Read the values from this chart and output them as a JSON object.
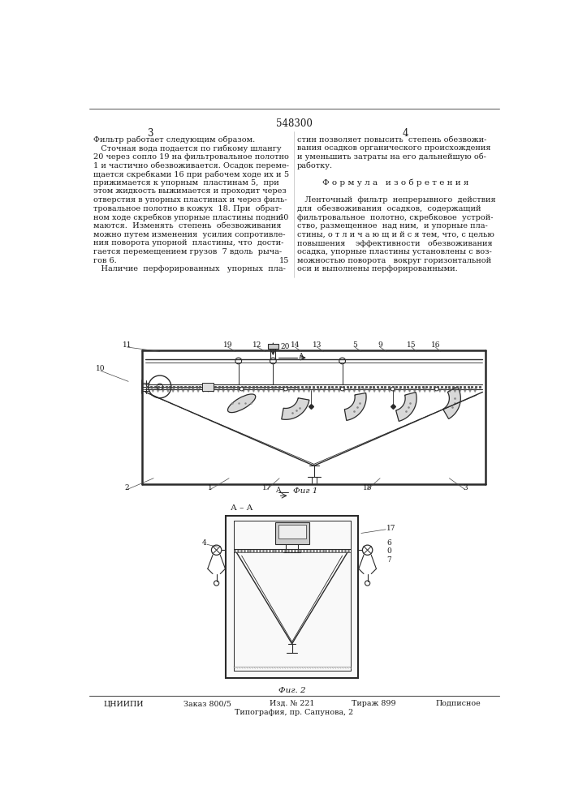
{
  "page_width": 7.07,
  "page_height": 10.0,
  "bg_color": "#ffffff",
  "patent_number": "548300",
  "page_numbers": [
    "3",
    "4"
  ],
  "left_text_lines": [
    "Фильтр работает следующим образом.",
    "   Сточная вода подается по гибкому шлангу",
    "20 через сопло 19 на фильтровальное полотно",
    "1 и частично обезвоживается. Осадок переме-",
    "щается скребками 16 при рабочем ходе их и",
    "прижимается к упорным  пластинам 5,  при",
    "этом жидкость выжимается и проходит через",
    "отверстия в упорных пластинах и через филь-",
    "тровальное полотно в кожух  18. При  обрат-",
    "ном ходе скребков упорные пластины подни-",
    "маются.  Изменять  степень  обезвоживания",
    "можно путем изменения  усилия сопротивле-",
    "ния поворота упорной  пластины, что  дости-",
    "гается перемещением грузов  7 вдоль  рыча-",
    "гов 6.",
    "   Наличие  перфорированных   упорных  пла-"
  ],
  "right_text_lines": [
    "стин позволяет повысить  степень обезвожи-",
    "вания осадков органического происхождения",
    "и уменьшить затраты на его дальнейшую об-",
    "работку.",
    "",
    "Ф о р м у л а   и з о б р е т е н и я",
    "",
    "   Ленточный  фильтр  непрерывного  действия",
    "для  обезвоживания  осадков,  содержащий",
    "фильтровальное  полотно, скребковое  устрой-",
    "ство, размещенное  над ним,  и упорные пла-",
    "стины, о т л и ч а ю щ и й с я тем, что, с целью",
    "повышения    эффективности   обезвоживания",
    "осадка, упорные пластины установлены с воз-",
    "можностью поворота   вокруг горизонтальной",
    "оси и выполнены перфорированными."
  ],
  "fig1_label": "Фиг 1",
  "fig2_label": "Фиг. 2",
  "bottom_text": [
    "ЦНИИПИ",
    "Заказ 800/5",
    "Изд. № 221",
    "Тираж 899",
    "Подписное"
  ],
  "bottom_text2": "Типография, пр. Сапунова, 2",
  "text_color": "#1a1a1a",
  "drawing_color": "#2a2a2a"
}
